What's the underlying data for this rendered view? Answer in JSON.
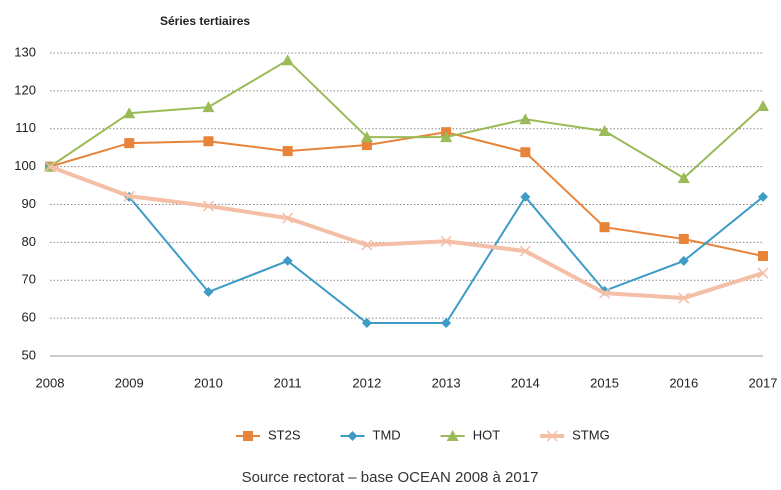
{
  "chart_data": {
    "type": "line",
    "title": "Séries tertiaires",
    "categories": [
      "2008",
      "2009",
      "2010",
      "2011",
      "2012",
      "2013",
      "2014",
      "2015",
      "2016",
      "2017"
    ],
    "series": [
      {
        "name": "ST2S",
        "color": "#e8833a",
        "marker": "square",
        "values": [
          100,
          106.2,
          106.7,
          104.1,
          105.7,
          109.1,
          103.8,
          84,
          80.9,
          76.4
        ]
      },
      {
        "name": "TMD",
        "color": "#3d9cc6",
        "marker": "diamond",
        "values": [
          100,
          92,
          66.9,
          75.1,
          58.7,
          58.7,
          92,
          67.2,
          75.1,
          92
        ]
      },
      {
        "name": "HOT",
        "color": "#9bbb59",
        "marker": "triangle",
        "values": [
          100,
          114.1,
          115.7,
          128.1,
          107.8,
          107.8,
          112.5,
          109.4,
          97,
          116
        ]
      },
      {
        "name": "STMG",
        "color": "#f4bfa6",
        "marker": "x",
        "values": [
          100,
          92.2,
          89.6,
          86.4,
          79.3,
          80.3,
          77.7,
          66.6,
          65.3,
          71.9
        ]
      }
    ],
    "ylim": [
      50,
      130
    ],
    "yticks": [
      50,
      60,
      70,
      80,
      90,
      100,
      110,
      120,
      130
    ],
    "grid": true,
    "legend": "bottom",
    "annotation": "Source rectorat – base OCEAN 2008 à 2017"
  }
}
